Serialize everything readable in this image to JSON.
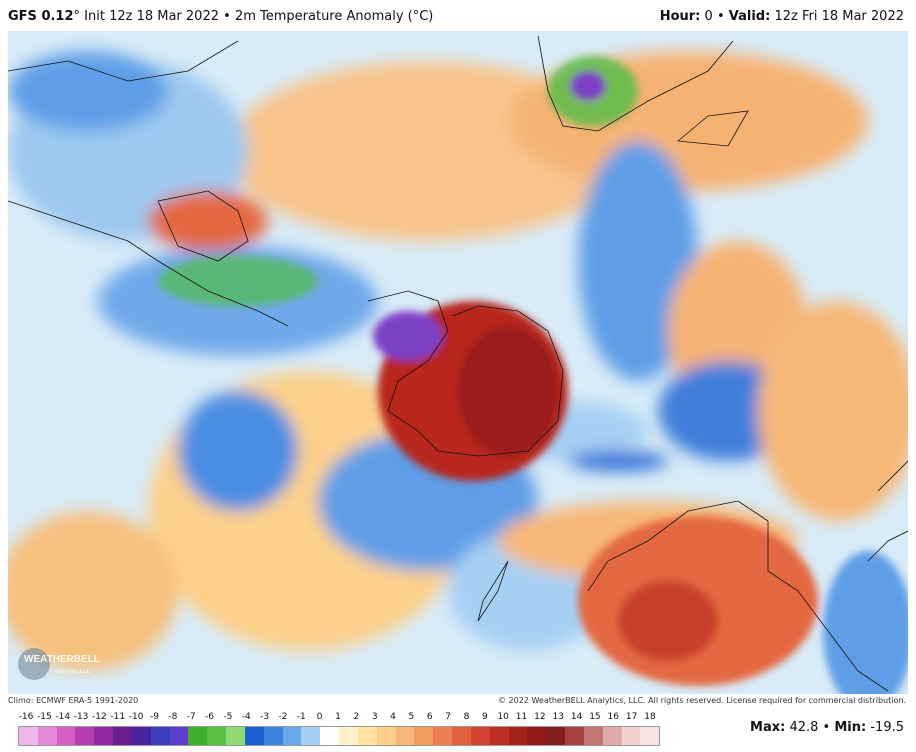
{
  "header": {
    "model": "GFS 0.12",
    "degree_mark": "°",
    "init": "Init 12z 18 Mar 2022",
    "separator": "•",
    "variable": "2m Temperature Anomaly (°C)",
    "hour_label": "Hour:",
    "hour_value": "0",
    "valid_label": "Valid:",
    "valid_value": "12z Fri 18 Mar 2022"
  },
  "footer": {
    "climo": "Climo: ECMWF ERA-5 1991-2020",
    "copyright": "© 2022 WeatherBELL Analytics, LLC. All rights reserved. License required for commercial distribution.",
    "max_label": "Max:",
    "max_value": "42.8",
    "min_label": "Min:",
    "min_value": "-19.5"
  },
  "logo": {
    "text": "WEATHERBELL",
    "sub": "Analytics LLC"
  },
  "colorbar": {
    "ticks": [
      "-16",
      "-15",
      "-14",
      "-13",
      "-12",
      "-11",
      "-10",
      "-9",
      "-8",
      "-7",
      "-6",
      "-5",
      "-4",
      "-3",
      "-2",
      "-1",
      "0",
      "1",
      "2",
      "3",
      "4",
      "5",
      "6",
      "7",
      "8",
      "9",
      "10",
      "11",
      "12",
      "13",
      "14",
      "15",
      "16",
      "17",
      "18"
    ],
    "colors": [
      "#f3b6e9",
      "#e48ad9",
      "#d25fc6",
      "#b43eb2",
      "#8f2aa0",
      "#6a1f8f",
      "#4a23a0",
      "#3a3fbf",
      "#5e3fd2",
      "#3fae2e",
      "#57c243",
      "#8fd977",
      "#1c5fd1",
      "#3c84e0",
      "#6aa9ec",
      "#a6cff4",
      "#ffffff",
      "#fff2c9",
      "#ffe3a1",
      "#fcd08a",
      "#f7b777",
      "#f29c62",
      "#ec7f4f",
      "#e1613f",
      "#d14330",
      "#be2f24",
      "#a8221c",
      "#931a18",
      "#80201f",
      "#a5433f",
      "#c47673",
      "#e0aaa8",
      "#f1d2cf",
      "#f7e4e2"
    ],
    "palette": {
      "ocean_base": "#cfe6f5",
      "cold_light": "#a6cff4",
      "cold_mid": "#5e9ee6",
      "cold_deep": "#2f6fd8",
      "green": "#4fbd46",
      "purple": "#7b3fc4",
      "warm_light": "#fbe1a6",
      "warm_mid": "#f6b273",
      "warm_deep": "#e3683f",
      "hot": "#b8281d",
      "extreme": "#9a1e1a"
    }
  }
}
